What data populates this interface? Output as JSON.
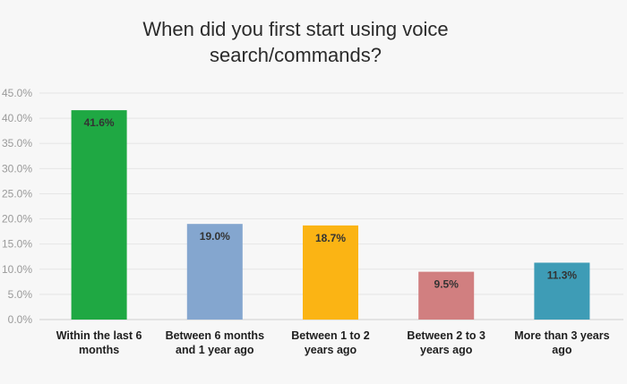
{
  "chart_data": {
    "type": "bar",
    "title_lines": [
      "When did you first start using voice",
      "search/commands?"
    ],
    "xlabel": "",
    "ylabel": "",
    "ylim": [
      0,
      45
    ],
    "yticks": [
      "0.0%",
      "5.0%",
      "10.0%",
      "15.0%",
      "20.0%",
      "25.0%",
      "30.0%",
      "35.0%",
      "40.0%",
      "45.0%"
    ],
    "grid": true,
    "legend": "none",
    "categories": [
      [
        "Within the last 6",
        "months"
      ],
      [
        "Between 6 months",
        "and 1 year ago"
      ],
      [
        "Between 1 to 2",
        "years ago"
      ],
      [
        "Between 2 to 3",
        "years ago"
      ],
      [
        "More than 3 years",
        "ago"
      ]
    ],
    "values": [
      41.6,
      19.0,
      18.7,
      9.5,
      11.3
    ],
    "value_labels": [
      "41.6%",
      "19.0%",
      "18.7%",
      "9.5%",
      "11.3%"
    ],
    "colors": [
      "#1fa843",
      "#84a6cf",
      "#fbb414",
      "#d17f80",
      "#3e9cb6"
    ]
  }
}
